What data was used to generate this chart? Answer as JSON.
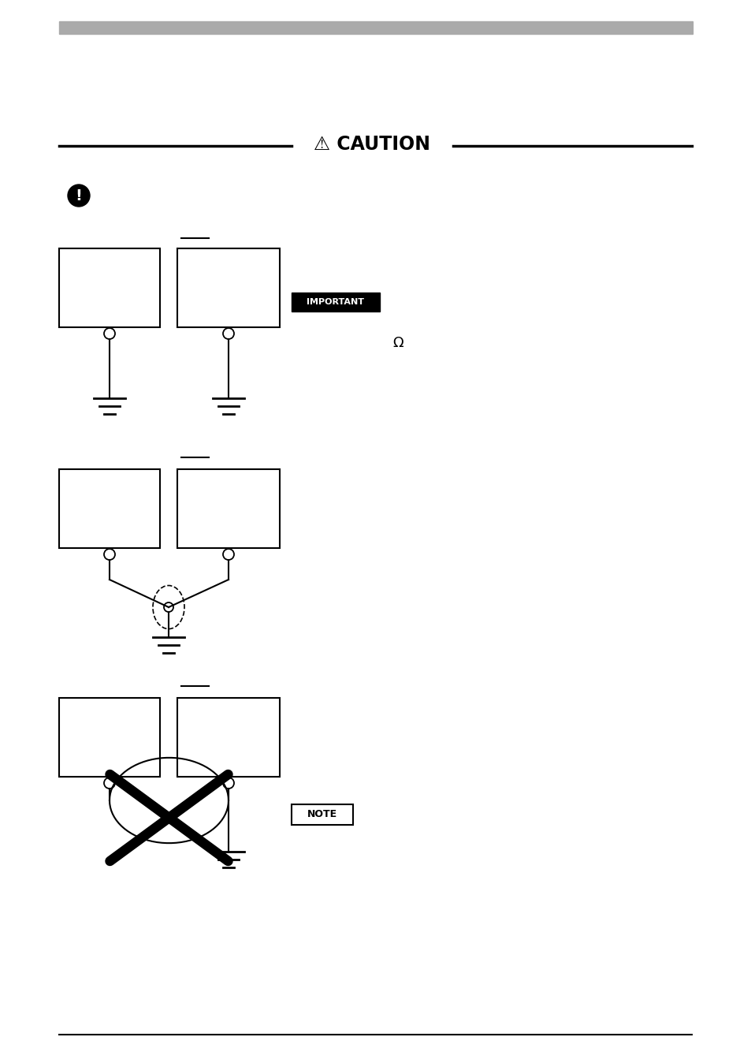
{
  "bg_color": "#ffffff",
  "header_bar_color": "#aaaaaa",
  "footer_line_color": "#000000",
  "caution_text": "CAUTION",
  "important_label": "IMPORTANT",
  "note_label": "NOTE",
  "omega_symbol": "Ω",
  "warning_symbol": "⚠",
  "bullet_symbol": "●",
  "exclaim_symbol": "!"
}
